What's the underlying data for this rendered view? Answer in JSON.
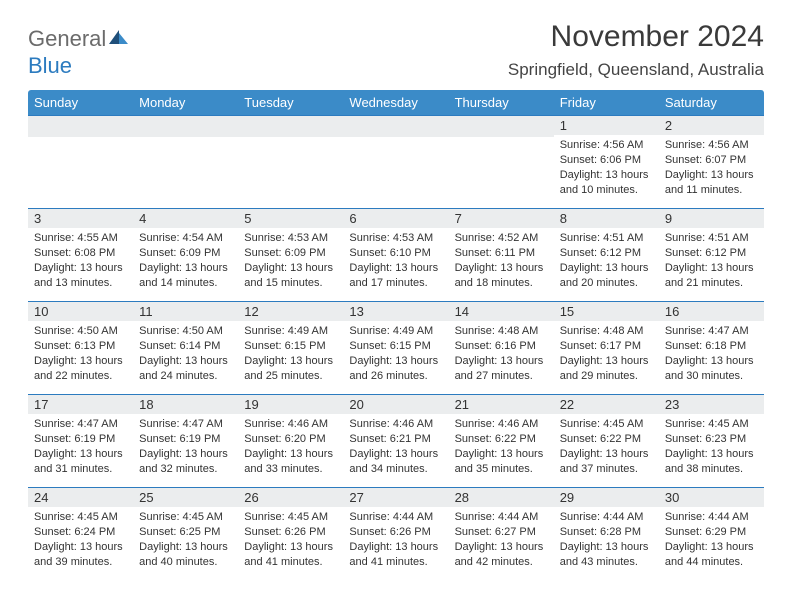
{
  "logo": {
    "text_gray": "General",
    "text_blue": "Blue",
    "sail_color_dark": "#1f4f7a",
    "sail_color_light": "#3b8bc8"
  },
  "title": "November 2024",
  "location": "Springfield, Queensland, Australia",
  "colors": {
    "header_bg": "#3b8bc8",
    "header_fg": "#ffffff",
    "row_divider": "#2c7bbf",
    "daynum_bg": "#ebedee",
    "text": "#333333",
    "page_bg": "#ffffff"
  },
  "day_headers": [
    "Sunday",
    "Monday",
    "Tuesday",
    "Wednesday",
    "Thursday",
    "Friday",
    "Saturday"
  ],
  "weeks": [
    [
      {
        "n": "",
        "lines": []
      },
      {
        "n": "",
        "lines": []
      },
      {
        "n": "",
        "lines": []
      },
      {
        "n": "",
        "lines": []
      },
      {
        "n": "",
        "lines": []
      },
      {
        "n": "1",
        "lines": [
          "Sunrise: 4:56 AM",
          "Sunset: 6:06 PM",
          "Daylight: 13 hours and 10 minutes."
        ]
      },
      {
        "n": "2",
        "lines": [
          "Sunrise: 4:56 AM",
          "Sunset: 6:07 PM",
          "Daylight: 13 hours and 11 minutes."
        ]
      }
    ],
    [
      {
        "n": "3",
        "lines": [
          "Sunrise: 4:55 AM",
          "Sunset: 6:08 PM",
          "Daylight: 13 hours and 13 minutes."
        ]
      },
      {
        "n": "4",
        "lines": [
          "Sunrise: 4:54 AM",
          "Sunset: 6:09 PM",
          "Daylight: 13 hours and 14 minutes."
        ]
      },
      {
        "n": "5",
        "lines": [
          "Sunrise: 4:53 AM",
          "Sunset: 6:09 PM",
          "Daylight: 13 hours and 15 minutes."
        ]
      },
      {
        "n": "6",
        "lines": [
          "Sunrise: 4:53 AM",
          "Sunset: 6:10 PM",
          "Daylight: 13 hours and 17 minutes."
        ]
      },
      {
        "n": "7",
        "lines": [
          "Sunrise: 4:52 AM",
          "Sunset: 6:11 PM",
          "Daylight: 13 hours and 18 minutes."
        ]
      },
      {
        "n": "8",
        "lines": [
          "Sunrise: 4:51 AM",
          "Sunset: 6:12 PM",
          "Daylight: 13 hours and 20 minutes."
        ]
      },
      {
        "n": "9",
        "lines": [
          "Sunrise: 4:51 AM",
          "Sunset: 6:12 PM",
          "Daylight: 13 hours and 21 minutes."
        ]
      }
    ],
    [
      {
        "n": "10",
        "lines": [
          "Sunrise: 4:50 AM",
          "Sunset: 6:13 PM",
          "Daylight: 13 hours and 22 minutes."
        ]
      },
      {
        "n": "11",
        "lines": [
          "Sunrise: 4:50 AM",
          "Sunset: 6:14 PM",
          "Daylight: 13 hours and 24 minutes."
        ]
      },
      {
        "n": "12",
        "lines": [
          "Sunrise: 4:49 AM",
          "Sunset: 6:15 PM",
          "Daylight: 13 hours and 25 minutes."
        ]
      },
      {
        "n": "13",
        "lines": [
          "Sunrise: 4:49 AM",
          "Sunset: 6:15 PM",
          "Daylight: 13 hours and 26 minutes."
        ]
      },
      {
        "n": "14",
        "lines": [
          "Sunrise: 4:48 AM",
          "Sunset: 6:16 PM",
          "Daylight: 13 hours and 27 minutes."
        ]
      },
      {
        "n": "15",
        "lines": [
          "Sunrise: 4:48 AM",
          "Sunset: 6:17 PM",
          "Daylight: 13 hours and 29 minutes."
        ]
      },
      {
        "n": "16",
        "lines": [
          "Sunrise: 4:47 AM",
          "Sunset: 6:18 PM",
          "Daylight: 13 hours and 30 minutes."
        ]
      }
    ],
    [
      {
        "n": "17",
        "lines": [
          "Sunrise: 4:47 AM",
          "Sunset: 6:19 PM",
          "Daylight: 13 hours and 31 minutes."
        ]
      },
      {
        "n": "18",
        "lines": [
          "Sunrise: 4:47 AM",
          "Sunset: 6:19 PM",
          "Daylight: 13 hours and 32 minutes."
        ]
      },
      {
        "n": "19",
        "lines": [
          "Sunrise: 4:46 AM",
          "Sunset: 6:20 PM",
          "Daylight: 13 hours and 33 minutes."
        ]
      },
      {
        "n": "20",
        "lines": [
          "Sunrise: 4:46 AM",
          "Sunset: 6:21 PM",
          "Daylight: 13 hours and 34 minutes."
        ]
      },
      {
        "n": "21",
        "lines": [
          "Sunrise: 4:46 AM",
          "Sunset: 6:22 PM",
          "Daylight: 13 hours and 35 minutes."
        ]
      },
      {
        "n": "22",
        "lines": [
          "Sunrise: 4:45 AM",
          "Sunset: 6:22 PM",
          "Daylight: 13 hours and 37 minutes."
        ]
      },
      {
        "n": "23",
        "lines": [
          "Sunrise: 4:45 AM",
          "Sunset: 6:23 PM",
          "Daylight: 13 hours and 38 minutes."
        ]
      }
    ],
    [
      {
        "n": "24",
        "lines": [
          "Sunrise: 4:45 AM",
          "Sunset: 6:24 PM",
          "Daylight: 13 hours and 39 minutes."
        ]
      },
      {
        "n": "25",
        "lines": [
          "Sunrise: 4:45 AM",
          "Sunset: 6:25 PM",
          "Daylight: 13 hours and 40 minutes."
        ]
      },
      {
        "n": "26",
        "lines": [
          "Sunrise: 4:45 AM",
          "Sunset: 6:26 PM",
          "Daylight: 13 hours and 41 minutes."
        ]
      },
      {
        "n": "27",
        "lines": [
          "Sunrise: 4:44 AM",
          "Sunset: 6:26 PM",
          "Daylight: 13 hours and 41 minutes."
        ]
      },
      {
        "n": "28",
        "lines": [
          "Sunrise: 4:44 AM",
          "Sunset: 6:27 PM",
          "Daylight: 13 hours and 42 minutes."
        ]
      },
      {
        "n": "29",
        "lines": [
          "Sunrise: 4:44 AM",
          "Sunset: 6:28 PM",
          "Daylight: 13 hours and 43 minutes."
        ]
      },
      {
        "n": "30",
        "lines": [
          "Sunrise: 4:44 AM",
          "Sunset: 6:29 PM",
          "Daylight: 13 hours and 44 minutes."
        ]
      }
    ]
  ]
}
